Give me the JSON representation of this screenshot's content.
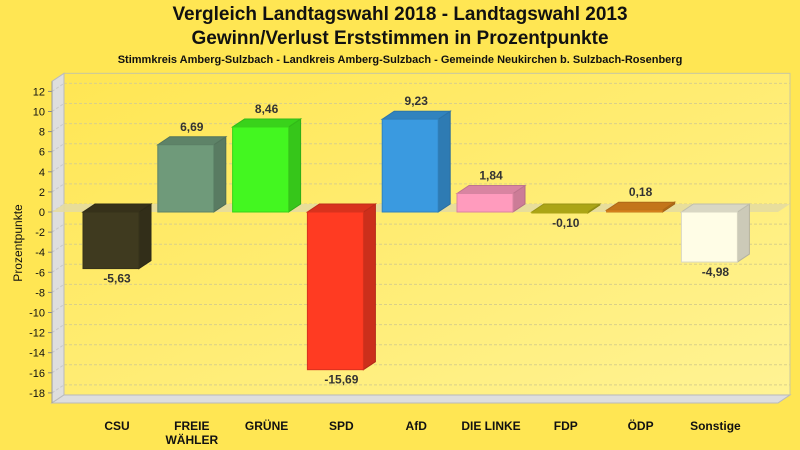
{
  "chart_data": {
    "type": "bar",
    "title": "Vergleich Landtagswahl 2018 - Landtagswahl 2013",
    "title2": "Gewinn/Verlust Erststimmen in Prozentpunkte",
    "subtitle": "Stimmkreis Amberg-Sulzbach - Landkreis Amberg-Sulzbach - Gemeinde Neukirchen b. Sulzbach-Rosenberg",
    "xlabel": "",
    "ylabel": "Prozentpunkte",
    "ylim": [
      -19,
      13
    ],
    "yticks": [
      12,
      10,
      8,
      6,
      4,
      2,
      0,
      -2,
      -4,
      -6,
      -8,
      -10,
      -12,
      -14,
      -16,
      -18
    ],
    "categories": [
      "CSU",
      "FREIE\nWÄHLER",
      "GRÜNE",
      "SPD",
      "AfD",
      "DIE LINKE",
      "FDP",
      "ÖDP",
      "Sonstige"
    ],
    "values": [
      -5.63,
      6.69,
      8.46,
      -15.69,
      9.23,
      1.84,
      -0.1,
      0.18,
      -4.98
    ],
    "labels": [
      "-5,63",
      "6,69",
      "8,46",
      "-15,69",
      "9,23",
      "1,84",
      "-0,10",
      "0,18",
      "-4,98"
    ],
    "colors": [
      "#3f3a1f",
      "#6f9a7a",
      "#43f720",
      "#ff3b22",
      "#3a9ae0",
      "#ff9bbd",
      "#c9c21a",
      "#e58a1e",
      "#fffde6"
    ],
    "grid": true,
    "legend": "none"
  }
}
